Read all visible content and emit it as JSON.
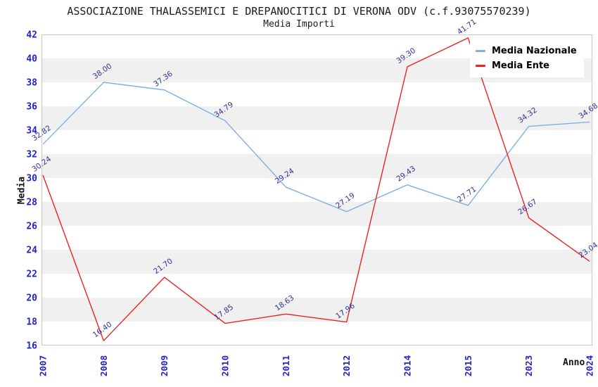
{
  "header": {
    "title": "ASSOCIAZIONE THALASSEMICI E DREPANOCITICI DI VERONA ODV (c.f.93075570239)",
    "subtitle": "Media Importi"
  },
  "axes": {
    "y_title": "Media",
    "x_title": "Anno"
  },
  "chart_data": {
    "type": "line",
    "title": "ASSOCIAZIONE THALASSEMICI E DREPANOCITICI DI VERONA ODV (c.f.93075570239)",
    "subtitle": "Media Importi",
    "categories": [
      "2007",
      "2008",
      "2009",
      "2010",
      "2011",
      "2012",
      "2014",
      "2015",
      "2023",
      "2024"
    ],
    "series": [
      {
        "name": "Media Nazionale",
        "color": "#7fb0e3",
        "values": [
          32.82,
          38.0,
          37.36,
          34.79,
          29.24,
          27.19,
          29.43,
          27.71,
          34.32,
          34.68
        ]
      },
      {
        "name": "Media Ente",
        "color": "#ee2222",
        "values": [
          30.24,
          16.4,
          21.7,
          17.85,
          18.63,
          17.96,
          39.3,
          41.71,
          26.67,
          23.04
        ]
      }
    ],
    "xlabel": "Anno",
    "ylabel": "Media",
    "ylim": [
      16,
      42
    ],
    "ytick_step": 2,
    "value_label_decimals": 2,
    "grid": "horizontal-bands",
    "legend_position": "top-right",
    "colors": {
      "tick_label": "#2222cc",
      "point_label": "#333399",
      "band_fill": "#f0f0f0",
      "plot_border": "#c9c9c9",
      "background": "#ffffff"
    }
  }
}
